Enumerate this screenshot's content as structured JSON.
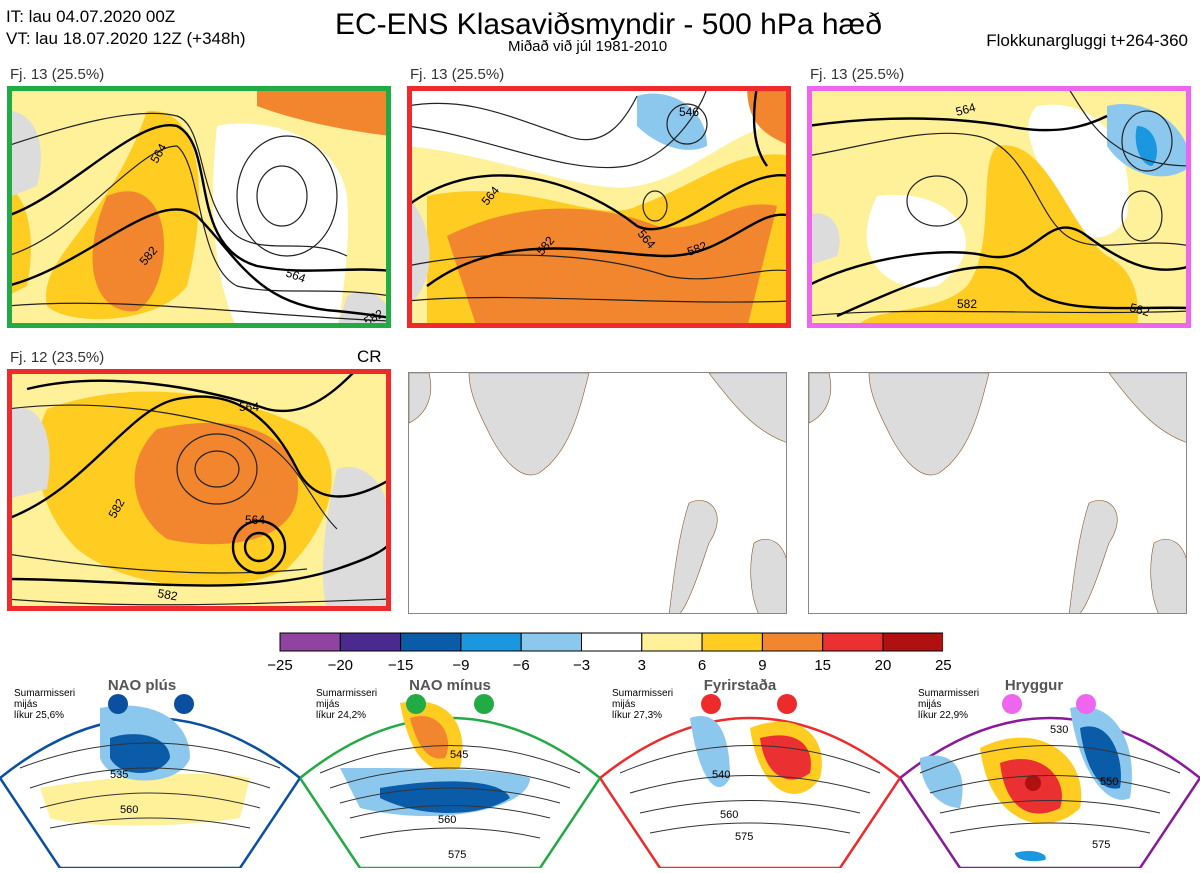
{
  "header": {
    "it": "IT: lau 04.07.2020 00Z",
    "vt": "VT: lau 18.07.2020 12Z  (+348h)",
    "title": "EC-ENS Klasaviðsmyndir - 500 hPa hæð",
    "subtitle": "Miðað við júl 1981-2010",
    "window": "Flokkunargluggi t+264-360"
  },
  "panels": [
    {
      "label": "Fj. 13 (25.5%)",
      "border": "#22aa44",
      "contours": [
        "564",
        "582",
        "564",
        "582"
      ]
    },
    {
      "label": "Fj. 13 (25.5%)",
      "border": "#ee2a2a",
      "contours": [
        "546",
        "564",
        "582",
        "564",
        "582"
      ]
    },
    {
      "label": "Fj. 13 (25.5%)",
      "border": "#ee66ee",
      "contours": [
        "564",
        "582",
        "582"
      ]
    },
    {
      "label": "Fj. 12 (23.5%)",
      "border": "#ee2a2a",
      "contours": [
        "564",
        "564",
        "582",
        "582"
      ],
      "tag": "CR"
    }
  ],
  "colorbar": {
    "ticks": [
      "−25",
      "−20",
      "−15",
      "−9",
      "−6",
      "−3",
      "3",
      "6",
      "9",
      "15",
      "20",
      "25"
    ],
    "colors": [
      "#8e44a0",
      "#4b2a90",
      "#0b5ca8",
      "#1b97e0",
      "#8cc8ee",
      "#ffffff",
      "#fff09a",
      "#ffcc22",
      "#f2862e",
      "#ea3030",
      "#b01010"
    ]
  },
  "regimes": [
    {
      "name": "NAO plús",
      "text": [
        "Sumarmisseri",
        "mijás",
        "líkur 25,6%"
      ],
      "border": "#0b4fa0",
      "dot": "#0b4fa0",
      "contours": [
        "535",
        "560"
      ]
    },
    {
      "name": "NAO mínus",
      "text": [
        "Sumarmisseri",
        "mijás",
        "líkur 24,2%"
      ],
      "border": "#22aa44",
      "dot": "#22aa44",
      "contours": [
        "545",
        "560",
        "575"
      ]
    },
    {
      "name": "Fyrirstaða",
      "text": [
        "Sumarmisseri",
        "mijás",
        "líkur 27,3%"
      ],
      "border": "#ee2a2a",
      "dot": "#ee2a2a",
      "contours": [
        "540",
        "560",
        "575"
      ]
    },
    {
      "name": "Hryggur",
      "text": [
        "Sumarmisseri",
        "mijás",
        "líkur 22,9%"
      ],
      "border": "#8a1a9a",
      "dot": "#ee66ee",
      "contours": [
        "530",
        "550",
        "575"
      ]
    }
  ]
}
